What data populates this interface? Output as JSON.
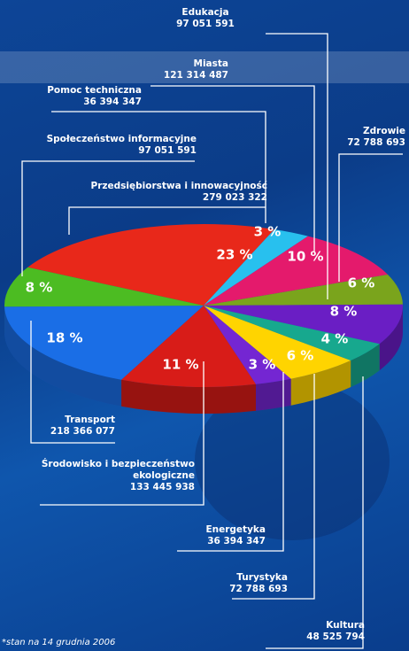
{
  "chart_data": {
    "type": "pie",
    "categories": [
      "Przedsiębiorstwa i innowacyjność",
      "Pomoc techniczna",
      "Miasta",
      "Zdrowie",
      "Edukacja",
      "Kultura",
      "Turystyka",
      "Energetyka",
      "Środowisko i bezpieczeństwo ekologiczne",
      "Transport",
      "Społeczeństwo informacyjne"
    ],
    "values": [
      23,
      3,
      10,
      6,
      8,
      4,
      6,
      3,
      11,
      18,
      8
    ],
    "value_labels": [
      "23 %",
      "3 %",
      "10 %",
      "6 %",
      "8 %",
      "4 %",
      "6 %",
      "3 %",
      "11 %",
      "18 %",
      "8 %"
    ],
    "amounts": [
      "279 023 322",
      "36 394 347",
      "121 314 487",
      "72 788 693",
      "97 051 591",
      "48 525 794",
      "72 788 693",
      "36 394 347",
      "133 445 938",
      "218 366 077",
      "97 051 591"
    ],
    "colors": [
      "#e8281a",
      "#28c0ee",
      "#e41a6c",
      "#7aa41c",
      "#6a1ec4",
      "#17a88e",
      "#ffd400",
      "#7426d2",
      "#d81c18",
      "#1a6ee6",
      "#4cbc22"
    ],
    "note": "*stan na 14 grudnia 2006"
  }
}
